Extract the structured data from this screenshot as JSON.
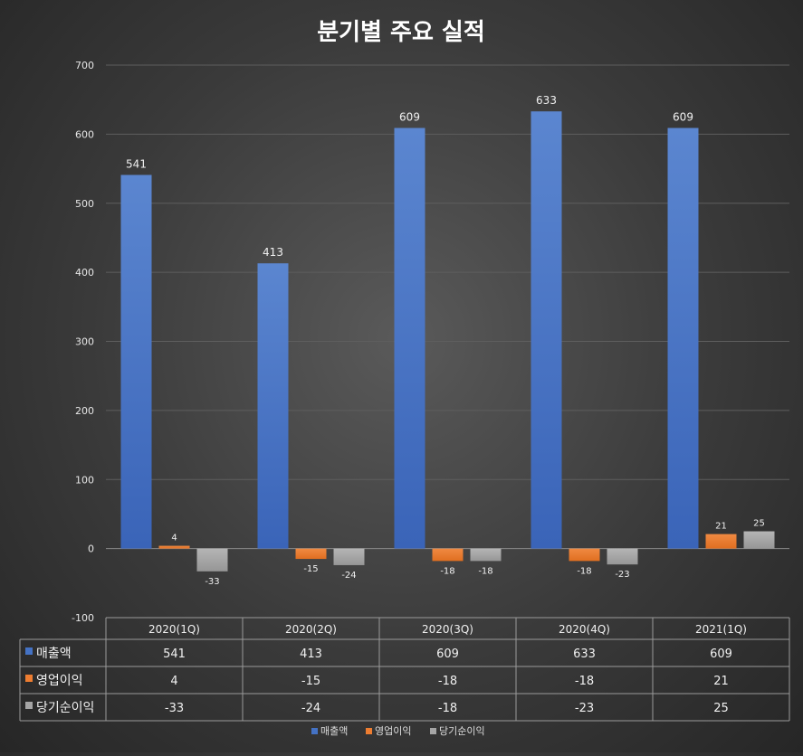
{
  "chart_data": {
    "type": "bar",
    "title": "분기별 주요 실적",
    "categories": [
      "2020(1Q)",
      "2020(2Q)",
      "2020(3Q)",
      "2020(4Q)",
      "2021(1Q)"
    ],
    "series": [
      {
        "name": "매출액",
        "values": [
          541,
          413,
          609,
          633,
          609
        ],
        "color": "#4472C4"
      },
      {
        "name": "영업이익",
        "values": [
          4,
          -15,
          -18,
          -18,
          21
        ],
        "color": "#ED7D31"
      },
      {
        "name": "당기순이익",
        "values": [
          -33,
          -24,
          -18,
          -23,
          25
        ],
        "color": "#A5A5A5"
      }
    ],
    "ylim": [
      -100,
      700
    ],
    "yticks": [
      "700",
      "600",
      "500",
      "400",
      "300",
      "200",
      "100",
      "0",
      "-100"
    ],
    "grid": true,
    "data_table": true,
    "legend_position": "bottom"
  }
}
